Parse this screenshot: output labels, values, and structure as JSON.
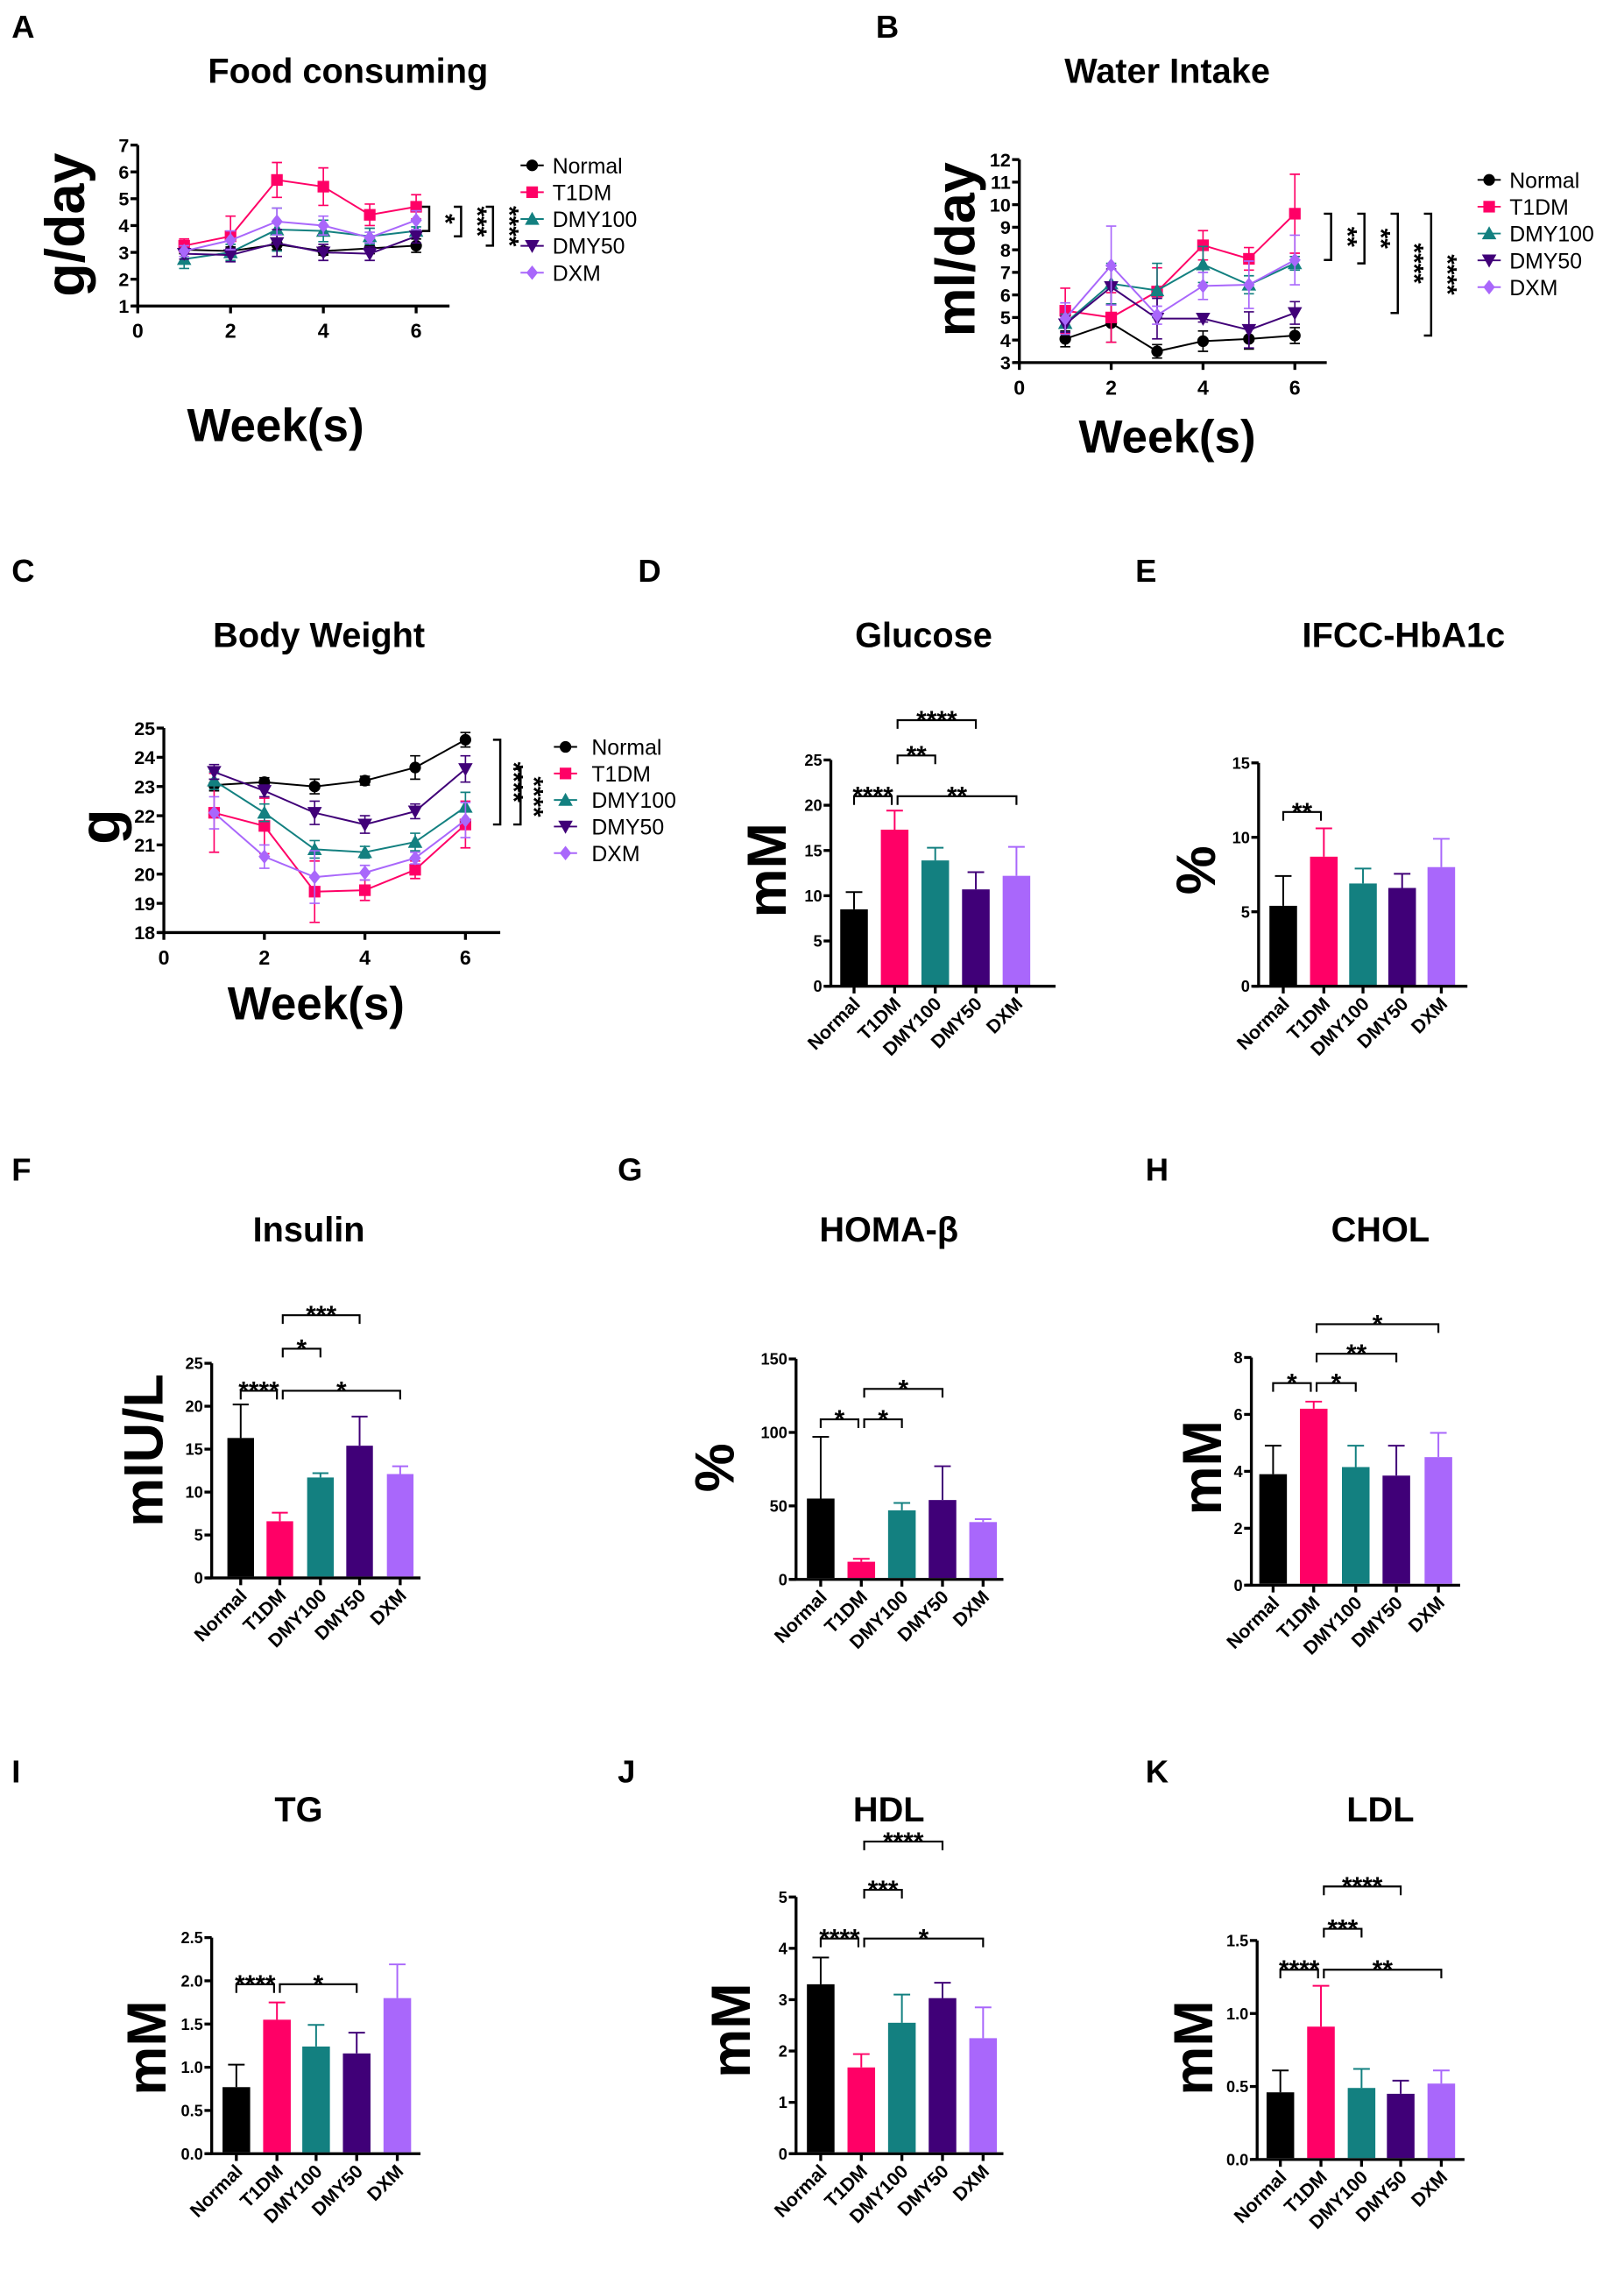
{
  "groups": [
    "Normal",
    "T1DM",
    "DMY100",
    "DMY50",
    "DXM"
  ],
  "colors": {
    "Normal": "#000000",
    "T1DM": "#ff0066",
    "DMY100": "#138080",
    "DMY50": "#400078",
    "DXM": "#a967fb"
  },
  "chart_data": [
    {
      "panel": "A",
      "type": "line",
      "title": "Food consuming",
      "xlabel": "Week(s)",
      "ylabel": "g/day",
      "xlim": [
        0,
        6
      ],
      "xticks": [
        "0",
        "2",
        "4",
        "6"
      ],
      "ylim": [
        1,
        7
      ],
      "yticks": [
        "1",
        "2",
        "3",
        "4",
        "5",
        "6",
        "7"
      ],
      "x": [
        1,
        2,
        3,
        4,
        5,
        6
      ],
      "legend": "right",
      "series": [
        {
          "name": "Normal",
          "values": [
            3.1,
            3.05,
            3.3,
            3.05,
            3.15,
            3.25
          ],
          "errors": [
            0.15,
            0.15,
            0.2,
            0.15,
            0.2,
            0.25
          ]
        },
        {
          "name": "T1DM",
          "values": [
            3.25,
            3.6,
            5.7,
            5.45,
            4.4,
            4.7
          ],
          "errors": [
            0.25,
            0.75,
            0.65,
            0.7,
            0.4,
            0.45
          ]
        },
        {
          "name": "DMY100",
          "values": [
            2.75,
            3.0,
            3.85,
            3.8,
            3.6,
            3.8
          ],
          "errors": [
            0.35,
            0.3,
            0.8,
            0.4,
            0.3,
            0.15
          ]
        },
        {
          "name": "DMY50",
          "values": [
            2.95,
            2.9,
            3.35,
            3.0,
            2.95,
            3.6
          ],
          "errors": [
            0.2,
            0.25,
            0.5,
            0.3,
            0.25,
            0.25
          ]
        },
        {
          "name": "DXM",
          "values": [
            3.05,
            3.45,
            4.15,
            4.0,
            3.55,
            4.2
          ],
          "errors": [
            0.2,
            0.35,
            0.5,
            0.35,
            0.2,
            0.35
          ]
        }
      ],
      "significance": [
        {
          "a": "T1DM",
          "b": "DMY100",
          "label": "*"
        },
        {
          "a": "T1DM",
          "b": "DMY50",
          "label": "***"
        },
        {
          "a": "T1DM",
          "b": "Normal",
          "label": "****"
        }
      ]
    },
    {
      "panel": "B",
      "type": "line",
      "title": "Water Intake",
      "xlabel": "Week(s)",
      "ylabel": "ml/day",
      "xlim": [
        0,
        6
      ],
      "xticks": [
        "0",
        "2",
        "4",
        "6"
      ],
      "ylim": [
        3,
        12
      ],
      "yticks": [
        "3",
        "4",
        "5",
        "6",
        "7",
        "8",
        "9",
        "10",
        "11",
        "12"
      ],
      "x": [
        1,
        2,
        3,
        4,
        5,
        6
      ],
      "legend": "right",
      "series": [
        {
          "name": "Normal",
          "values": [
            4.05,
            4.75,
            3.5,
            3.95,
            4.05,
            4.2
          ],
          "errors": [
            0.35,
            0.85,
            0.3,
            0.45,
            0.45,
            0.35
          ]
        },
        {
          "name": "T1DM",
          "values": [
            5.3,
            5.0,
            6.15,
            8.2,
            7.6,
            9.6
          ],
          "errors": [
            1.0,
            1.1,
            1.05,
            0.65,
            0.5,
            1.75
          ]
        },
        {
          "name": "DMY100",
          "values": [
            4.75,
            6.5,
            6.2,
            7.35,
            6.45,
            7.4
          ],
          "errors": [
            0.4,
            0.9,
            1.2,
            0.8,
            0.4,
            0.3
          ]
        },
        {
          "name": "DMY50",
          "values": [
            4.7,
            6.35,
            4.95,
            4.95,
            4.45,
            5.2
          ],
          "errors": [
            0.35,
            0.8,
            0.9,
            0.15,
            0.8,
            0.5
          ]
        },
        {
          "name": "DXM",
          "values": [
            4.95,
            7.3,
            5.1,
            6.4,
            6.45,
            7.55
          ],
          "errors": [
            0.7,
            1.75,
            0.4,
            0.6,
            1.05,
            1.1
          ]
        }
      ],
      "significance": [
        {
          "a": "T1DM",
          "b": "DXM",
          "label": "**"
        },
        {
          "a": "T1DM",
          "b": "DMY100",
          "label": "**"
        },
        {
          "a": "T1DM",
          "b": "DMY50",
          "label": "****"
        },
        {
          "a": "T1DM",
          "b": "Normal",
          "label": "****"
        }
      ]
    },
    {
      "panel": "C",
      "type": "line",
      "title": "Body Weight",
      "xlabel": "Week(s)",
      "ylabel": "g",
      "xlim": [
        0,
        6
      ],
      "xticks": [
        "0",
        "2",
        "4",
        "6"
      ],
      "ylim": [
        18,
        25
      ],
      "yticks": [
        "18",
        "19",
        "20",
        "21",
        "22",
        "23",
        "24",
        "25"
      ],
      "x": [
        1,
        2,
        3,
        4,
        5,
        6
      ],
      "legend": "right",
      "series": [
        {
          "name": "Normal",
          "values": [
            23.05,
            23.15,
            23.0,
            23.2,
            23.65,
            24.6
          ],
          "errors": [
            0.2,
            0.15,
            0.25,
            0.15,
            0.4,
            0.25
          ]
        },
        {
          "name": "T1DM",
          "values": [
            22.1,
            21.65,
            19.4,
            19.45,
            20.15,
            21.7
          ],
          "errors": [
            1.35,
            0.95,
            1.05,
            0.35,
            0.3,
            0.8
          ]
        },
        {
          "name": "DMY100",
          "values": [
            23.2,
            22.1,
            20.85,
            20.75,
            21.1,
            22.3
          ],
          "errors": [
            0.3,
            0.3,
            0.3,
            0.2,
            0.3,
            0.5
          ]
        },
        {
          "name": "DMY50",
          "values": [
            23.5,
            22.85,
            22.1,
            21.7,
            22.15,
            23.6
          ],
          "errors": [
            0.25,
            0.2,
            0.4,
            0.3,
            0.25,
            0.45
          ]
        },
        {
          "name": "DXM",
          "values": [
            22.1,
            20.6,
            19.9,
            20.05,
            20.55,
            21.85
          ],
          "errors": [
            0.55,
            0.4,
            0.9,
            0.25,
            0.2,
            0.6
          ]
        }
      ],
      "significance": [
        {
          "a": "Normal",
          "b": "T1DM",
          "label": "****"
        },
        {
          "a": "DMY50",
          "b": "T1DM",
          "label": "****"
        }
      ]
    },
    {
      "panel": "D",
      "type": "bar",
      "title": "Glucose",
      "ylabel": "mM",
      "ylim": [
        0,
        25
      ],
      "yticks": [
        "0",
        "5",
        "10",
        "15",
        "20",
        "25"
      ],
      "categories": [
        "Normal",
        "T1DM",
        "DMY100",
        "DMY50",
        "DXM"
      ],
      "values": [
        8.5,
        17.3,
        13.9,
        10.7,
        12.2
      ],
      "errors": [
        1.9,
        2.1,
        1.4,
        1.9,
        3.2
      ],
      "significance": [
        {
          "a": "Normal",
          "b": "T1DM",
          "label": "****"
        },
        {
          "a": "T1DM",
          "b": "DMY100",
          "label": "**"
        },
        {
          "a": "T1DM",
          "b": "DMY50",
          "label": "****"
        },
        {
          "a": "T1DM",
          "b": "DXM",
          "label": "**"
        }
      ]
    },
    {
      "panel": "E",
      "type": "bar",
      "title": "IFCC-HbA1c",
      "ylabel": "%",
      "ylim": [
        0,
        15
      ],
      "yticks": [
        "0",
        "5",
        "10",
        "15"
      ],
      "categories": [
        "Normal",
        "T1DM",
        "DMY100",
        "DMY50",
        "DXM"
      ],
      "values": [
        5.4,
        8.7,
        6.9,
        6.6,
        8.0
      ],
      "errors": [
        2.0,
        1.9,
        1.0,
        0.95,
        1.9
      ],
      "significance": [
        {
          "a": "Normal",
          "b": "T1DM",
          "label": "**"
        }
      ]
    },
    {
      "panel": "F",
      "type": "bar",
      "title": "Insulin",
      "ylabel": "mIU/L",
      "ylim": [
        0,
        25
      ],
      "yticks": [
        "0",
        "5",
        "10",
        "15",
        "20",
        "25"
      ],
      "categories": [
        "Normal",
        "T1DM",
        "DMY100",
        "DMY50",
        "DXM"
      ],
      "values": [
        16.3,
        6.6,
        11.7,
        15.4,
        12.1
      ],
      "errors": [
        3.9,
        1.0,
        0.5,
        3.4,
        0.9
      ],
      "significance": [
        {
          "a": "Normal",
          "b": "T1DM",
          "label": "****"
        },
        {
          "a": "T1DM",
          "b": "DMY100",
          "label": "*"
        },
        {
          "a": "T1DM",
          "b": "DMY50",
          "label": "***"
        },
        {
          "a": "T1DM",
          "b": "DXM",
          "label": "*"
        }
      ]
    },
    {
      "panel": "G",
      "type": "bar",
      "title": "HOMA-β",
      "ylabel": "%",
      "ylim": [
        0,
        150
      ],
      "yticks": [
        "0",
        "50",
        "100",
        "150"
      ],
      "categories": [
        "Normal",
        "T1DM",
        "DMY100",
        "DMY50",
        "DXM"
      ],
      "values": [
        55,
        12,
        47,
        54,
        39
      ],
      "errors": [
        42,
        2,
        5,
        23,
        2
      ],
      "significance": [
        {
          "a": "Normal",
          "b": "T1DM",
          "label": "*"
        },
        {
          "a": "T1DM",
          "b": "DMY100",
          "label": "*"
        },
        {
          "a": "T1DM",
          "b": "DMY50",
          "label": "*"
        }
      ]
    },
    {
      "panel": "H",
      "type": "bar",
      "title": "CHOL",
      "ylabel": "mM",
      "ylim": [
        0,
        8
      ],
      "yticks": [
        "0",
        "2",
        "4",
        "6",
        "8"
      ],
      "categories": [
        "Normal",
        "T1DM",
        "DMY100",
        "DMY50",
        "DXM"
      ],
      "values": [
        3.9,
        6.2,
        4.15,
        3.85,
        4.5
      ],
      "errors": [
        1.0,
        0.25,
        0.75,
        1.05,
        0.85
      ],
      "significance": [
        {
          "a": "Normal",
          "b": "T1DM",
          "label": "*"
        },
        {
          "a": "T1DM",
          "b": "DMY100",
          "label": "*"
        },
        {
          "a": "T1DM",
          "b": "DMY50",
          "label": "**"
        },
        {
          "a": "T1DM",
          "b": "DXM",
          "label": "*"
        }
      ]
    },
    {
      "panel": "I",
      "type": "bar",
      "title": "TG",
      "ylabel": "mM",
      "ylim": [
        0,
        2.5
      ],
      "yticks": [
        "0.0",
        "0.5",
        "1.0",
        "1.5",
        "2.0",
        "2.5"
      ],
      "categories": [
        "Normal",
        "T1DM",
        "DMY100",
        "DMY50",
        "DXM"
      ],
      "values": [
        0.77,
        1.55,
        1.24,
        1.16,
        1.8
      ],
      "errors": [
        0.26,
        0.2,
        0.25,
        0.24,
        0.39
      ],
      "significance": [
        {
          "a": "Normal",
          "b": "T1DM",
          "label": "****"
        },
        {
          "a": "T1DM",
          "b": "DMY50",
          "label": "*"
        }
      ]
    },
    {
      "panel": "J",
      "type": "bar",
      "title": "HDL",
      "ylabel": "mM",
      "ylim": [
        0,
        5
      ],
      "yticks": [
        "0",
        "1",
        "2",
        "3",
        "4",
        "5"
      ],
      "categories": [
        "Normal",
        "T1DM",
        "DMY100",
        "DMY50",
        "DXM"
      ],
      "values": [
        3.3,
        1.68,
        2.55,
        3.03,
        2.25
      ],
      "errors": [
        0.52,
        0.26,
        0.55,
        0.3,
        0.6
      ],
      "significance": [
        {
          "a": "Normal",
          "b": "T1DM",
          "label": "****"
        },
        {
          "a": "T1DM",
          "b": "DMY100",
          "label": "***"
        },
        {
          "a": "T1DM",
          "b": "DMY50",
          "label": "****"
        },
        {
          "a": "T1DM",
          "b": "DXM",
          "label": "*"
        }
      ]
    },
    {
      "panel": "K",
      "type": "bar",
      "title": "LDL",
      "ylabel": "mM",
      "ylim": [
        0,
        1.5
      ],
      "yticks": [
        "0.0",
        "0.5",
        "1.0",
        "1.5"
      ],
      "categories": [
        "Normal",
        "T1DM",
        "DMY100",
        "DMY50",
        "DXM"
      ],
      "values": [
        0.46,
        0.91,
        0.49,
        0.45,
        0.52
      ],
      "errors": [
        0.15,
        0.28,
        0.13,
        0.09,
        0.09
      ],
      "significance": [
        {
          "a": "Normal",
          "b": "T1DM",
          "label": "****"
        },
        {
          "a": "T1DM",
          "b": "DMY100",
          "label": "***"
        },
        {
          "a": "T1DM",
          "b": "DMY50",
          "label": "****"
        },
        {
          "a": "T1DM",
          "b": "DXM",
          "label": "**"
        }
      ]
    }
  ]
}
